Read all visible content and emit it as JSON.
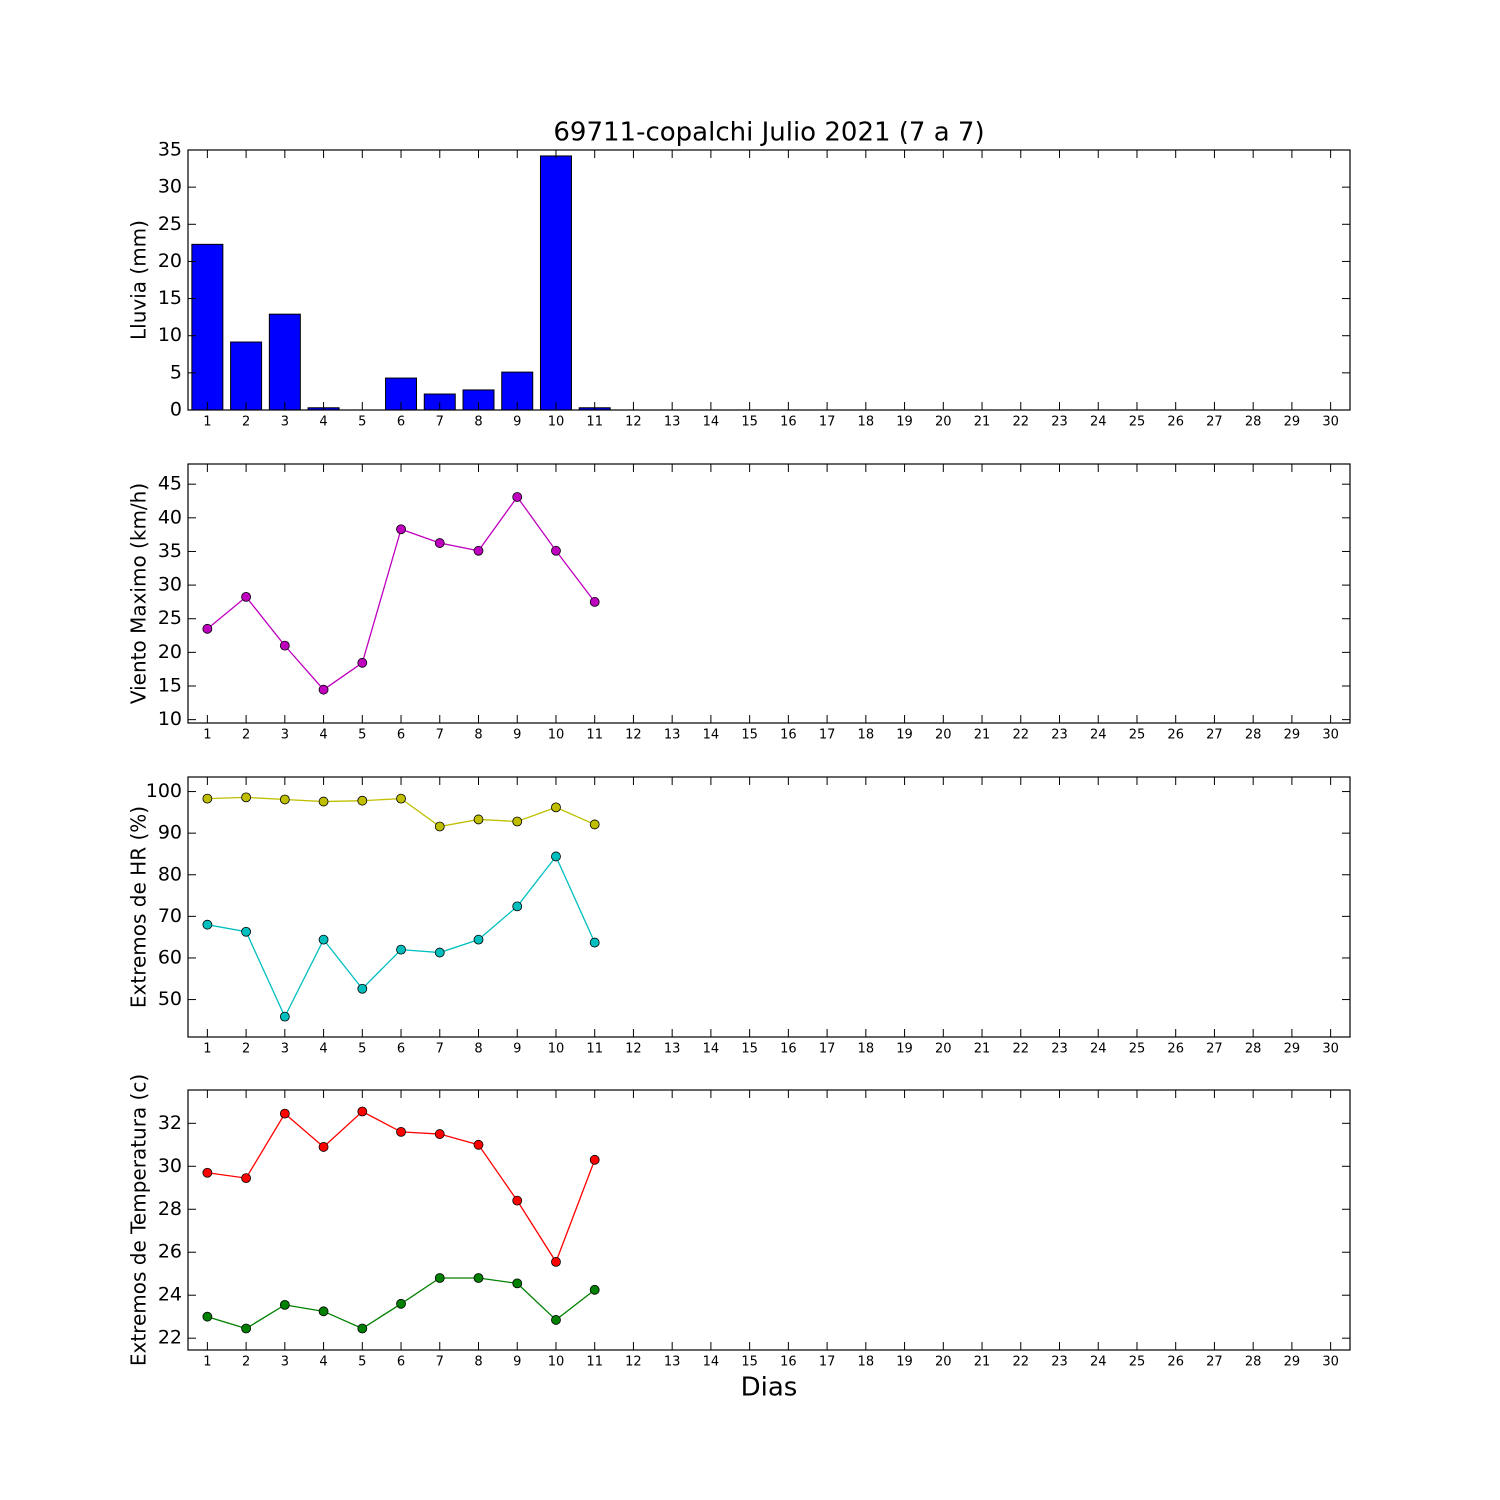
{
  "chart_data": [
    {
      "type": "bar",
      "title": "69711-copalchi Julio 2021  (7 a 7)",
      "ylabel": "Lluvia (mm)",
      "x": [
        1,
        2,
        3,
        4,
        5,
        6,
        7,
        8,
        9,
        10,
        11
      ],
      "values": [
        22.3,
        9.15,
        12.9,
        0.3,
        0,
        4.3,
        2.15,
        2.7,
        5.1,
        34.2,
        0.3
      ],
      "color": "#0000ff",
      "xlim": [
        0.5,
        30.5
      ],
      "xticks": [
        1,
        2,
        3,
        4,
        5,
        6,
        7,
        8,
        9,
        10,
        11,
        12,
        13,
        14,
        15,
        16,
        17,
        18,
        19,
        20,
        21,
        22,
        23,
        24,
        25,
        26,
        27,
        28,
        29,
        30
      ],
      "ylim": [
        0,
        35
      ],
      "yticks": [
        0,
        5,
        10,
        15,
        20,
        25,
        30,
        35
      ]
    },
    {
      "type": "line",
      "ylabel": "Viento Maximo (km/h)",
      "x": [
        1,
        2,
        3,
        4,
        5,
        6,
        7,
        8,
        9,
        10,
        11
      ],
      "series": [
        {
          "color": "#bf00bf",
          "values": [
            23.5,
            28.25,
            21,
            14.45,
            18.45,
            38.3,
            36.25,
            35.1,
            43.1,
            35.1,
            27.5
          ]
        }
      ],
      "xlim": [
        0.5,
        30.5
      ],
      "xticks": [
        1,
        2,
        3,
        4,
        5,
        6,
        7,
        8,
        9,
        10,
        11,
        12,
        13,
        14,
        15,
        16,
        17,
        18,
        19,
        20,
        21,
        22,
        23,
        24,
        25,
        26,
        27,
        28,
        29,
        30
      ],
      "ylim": [
        9.5,
        48
      ],
      "yticks": [
        10,
        15,
        20,
        25,
        30,
        35,
        40,
        45
      ]
    },
    {
      "type": "line",
      "ylabel": "Extremos de HR (%)",
      "x": [
        1,
        2,
        3,
        4,
        5,
        6,
        7,
        8,
        9,
        10,
        11
      ],
      "series": [
        {
          "color": "#bfbf00",
          "values": [
            98.3,
            98.6,
            98.1,
            97.6,
            97.8,
            98.3,
            91.6,
            93.3,
            92.8,
            96.2,
            92.1
          ]
        },
        {
          "color": "#00bfbf",
          "values": [
            68,
            66.3,
            45.9,
            64.4,
            52.6,
            62,
            61.3,
            64.4,
            72.4,
            84.4,
            63.7
          ]
        }
      ],
      "xlim": [
        0.5,
        30.5
      ],
      "xticks": [
        1,
        2,
        3,
        4,
        5,
        6,
        7,
        8,
        9,
        10,
        11,
        12,
        13,
        14,
        15,
        16,
        17,
        18,
        19,
        20,
        21,
        22,
        23,
        24,
        25,
        26,
        27,
        28,
        29,
        30
      ],
      "ylim": [
        41,
        103.5
      ],
      "yticks": [
        50,
        60,
        70,
        80,
        90,
        100
      ]
    },
    {
      "type": "line",
      "ylabel": "Extremos de Temperatura (c)",
      "xlabel": "Dias",
      "x": [
        1,
        2,
        3,
        4,
        5,
        6,
        7,
        8,
        9,
        10,
        11
      ],
      "series": [
        {
          "color": "#ff0000",
          "values": [
            29.7,
            29.45,
            32.45,
            30.9,
            32.55,
            31.6,
            31.5,
            31,
            28.4,
            25.55,
            30.3
          ]
        },
        {
          "color": "#008000",
          "values": [
            23.0,
            22.45,
            23.55,
            23.25,
            22.45,
            23.6,
            24.8,
            24.8,
            24.55,
            22.85,
            24.25
          ]
        }
      ],
      "xlim": [
        0.5,
        30.5
      ],
      "xticks": [
        1,
        2,
        3,
        4,
        5,
        6,
        7,
        8,
        9,
        10,
        11,
        12,
        13,
        14,
        15,
        16,
        17,
        18,
        19,
        20,
        21,
        22,
        23,
        24,
        25,
        26,
        27,
        28,
        29,
        30
      ],
      "ylim": [
        21.45,
        33.55
      ],
      "yticks": [
        22,
        24,
        26,
        28,
        30,
        32
      ]
    }
  ]
}
